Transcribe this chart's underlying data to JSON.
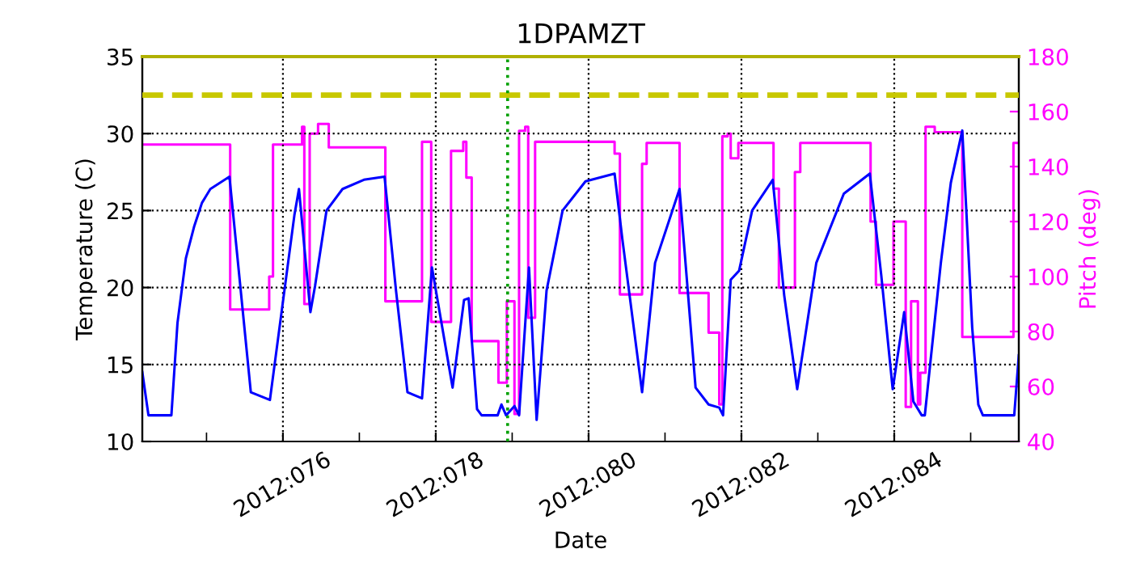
{
  "chart_data": {
    "type": "line",
    "title": "1DPAMZT",
    "xlabel": "Date",
    "ylabel": "Temperature (C)",
    "y2label": "Pitch (deg)",
    "xlim": [
      "2012-03-14T03:50",
      "2012-03-25T15:07"
    ],
    "xticks": [
      {
        "value": "2012-03-15",
        "label": null
      },
      {
        "value": "2012-03-16",
        "label": "2012:076"
      },
      {
        "value": "2012-03-17",
        "label": null
      },
      {
        "value": "2012-03-18",
        "label": "2012:078"
      },
      {
        "value": "2012-03-19",
        "label": null
      },
      {
        "value": "2012-03-20",
        "label": "2012:080"
      },
      {
        "value": "2012-03-21",
        "label": null
      },
      {
        "value": "2012-03-22",
        "label": "2012:082"
      },
      {
        "value": "2012-03-23",
        "label": null
      },
      {
        "value": "2012-03-24",
        "label": "2012:084"
      },
      {
        "value": "2012-03-25",
        "label": null
      }
    ],
    "ylim": [
      10,
      35
    ],
    "yticks": [
      10,
      15,
      20,
      25,
      30,
      35
    ],
    "y2lim": [
      40,
      180
    ],
    "y2ticks": [
      40,
      60,
      80,
      100,
      120,
      140,
      160,
      180
    ],
    "grid": true,
    "ref_lines": [
      {
        "axis": "y",
        "value": 32.5,
        "color": "#c8c800",
        "line_style": "dashed"
      },
      {
        "axis": "y",
        "value": 35,
        "color": "#b0b000",
        "line_style": "solid"
      },
      {
        "axis": "x",
        "value": "2012-03-18T22:34",
        "color": "#00a000",
        "line_style": "dotted"
      }
    ],
    "series": [
      {
        "color": "#0000ff",
        "x": [
          "2012-03-14T03:50",
          "2012-03-14T05:46",
          "2012-03-14T12:58",
          "2012-03-14T14:53",
          "2012-03-14T17:31",
          "2012-03-14T20:10",
          "2012-03-14T22:34",
          "2012-03-15T01:12",
          "2012-03-15T07:12",
          "2012-03-15T13:55",
          "2012-03-15T19:55",
          "2012-03-16T03:36",
          "2012-03-16T05:02",
          "2012-03-16T08:38",
          "2012-03-16T10:05",
          "2012-03-16T13:41",
          "2012-03-16T18:43",
          "2012-03-17T01:26",
          "2012-03-17T07:55",
          "2012-03-17T11:31",
          "2012-03-17T15:07",
          "2012-03-17T19:41",
          "2012-03-17T22:48",
          "2012-03-18T05:17",
          "2012-03-18T08:53",
          "2012-03-18T10:19",
          "2012-03-18T12:58",
          "2012-03-18T14:24",
          "2012-03-18T19:26",
          "2012-03-18T20:38",
          "2012-03-18T22:05",
          "2012-03-19T00:43",
          "2012-03-19T02:10",
          "2012-03-19T05:17",
          "2012-03-19T07:41",
          "2012-03-19T10:48",
          "2012-03-19T15:50",
          "2012-03-19T23:02",
          "2012-03-20T08:10",
          "2012-03-20T10:34",
          "2012-03-20T16:48",
          "2012-03-20T20:53",
          "2012-03-21T04:34",
          "2012-03-21T09:36",
          "2012-03-21T13:41",
          "2012-03-21T17:02",
          "2012-03-21T18:14",
          "2012-03-21T20:38",
          "2012-03-21T23:17",
          "2012-03-22T03:22",
          "2012-03-22T09:50",
          "2012-03-22T13:26",
          "2012-03-22T17:31",
          "2012-03-22T23:31",
          "2012-03-23T08:10",
          "2012-03-23T16:19",
          "2012-03-23T19:55",
          "2012-03-23T23:31",
          "2012-03-24T03:07",
          "2012-03-24T06:00",
          "2012-03-24T08:38",
          "2012-03-24T09:36",
          "2012-03-24T14:38",
          "2012-03-24T17:46",
          "2012-03-24T21:22",
          "2012-03-25T00:29",
          "2012-03-25T02:24",
          "2012-03-25T03:50",
          "2012-03-25T13:41",
          "2012-03-25T15:07"
        ],
        "values": [
          14.5,
          11.7,
          11.7,
          17.7,
          21.9,
          24.0,
          25.5,
          26.4,
          27.2,
          13.2,
          12.7,
          24.7,
          26.4,
          18.4,
          20.1,
          25.0,
          26.4,
          27.0,
          27.2,
          19.8,
          13.2,
          12.8,
          21.3,
          13.5,
          19.2,
          19.3,
          12.1,
          11.7,
          11.7,
          12.4,
          11.7,
          12.3,
          11.7,
          21.3,
          11.4,
          19.8,
          25.0,
          26.9,
          27.4,
          23.2,
          13.2,
          21.6,
          26.4,
          13.5,
          12.4,
          12.2,
          11.7,
          20.5,
          21.1,
          25.0,
          27.0,
          19.5,
          13.4,
          21.6,
          26.1,
          27.4,
          20.8,
          13.4,
          18.4,
          12.6,
          11.7,
          11.7,
          21.6,
          26.8,
          30.2,
          17.4,
          12.4,
          11.7,
          11.7,
          15.6
        ]
      },
      {
        "type": "step",
        "axis": "y2",
        "color": "#ff00ff",
        "x": [
          "2012-03-14T03:50",
          "2012-03-15T07:26",
          "2012-03-15T19:41",
          "2012-03-15T20:53",
          "2012-03-16T06:00",
          "2012-03-16T06:43",
          "2012-03-16T08:24",
          "2012-03-16T11:02",
          "2012-03-16T14:24",
          "2012-03-17T08:10",
          "2012-03-17T19:41",
          "2012-03-17T22:34",
          "2012-03-18T04:48",
          "2012-03-18T08:38",
          "2012-03-18T09:36",
          "2012-03-18T11:17",
          "2012-03-18T19:41",
          "2012-03-18T22:19",
          "2012-03-19T00:43",
          "2012-03-19T02:10",
          "2012-03-19T04:05",
          "2012-03-19T05:02",
          "2012-03-19T07:12",
          "2012-03-20T08:10",
          "2012-03-20T09:50",
          "2012-03-20T16:48",
          "2012-03-20T18:14",
          "2012-03-21T04:34",
          "2012-03-21T13:41",
          "2012-03-21T17:02",
          "2012-03-21T18:00",
          "2012-03-21T19:41",
          "2012-03-21T20:38",
          "2012-03-21T23:02",
          "2012-03-22T10:05",
          "2012-03-22T11:46",
          "2012-03-22T16:48",
          "2012-03-22T18:29",
          "2012-03-23T16:34",
          "2012-03-23T18:14",
          "2012-03-23T23:46",
          "2012-03-24T03:36",
          "2012-03-24T05:17",
          "2012-03-24T07:26",
          "2012-03-24T08:10",
          "2012-03-24T09:50",
          "2012-03-24T12:43",
          "2012-03-24T21:22",
          "2012-03-25T13:26",
          "2012-03-25T15:07"
        ],
        "values": [
          148,
          88,
          100,
          148,
          154.5,
          90,
          152,
          155.5,
          147,
          91,
          149,
          83.5,
          145.7,
          149,
          136,
          76.5,
          61.4,
          91,
          50,
          153,
          154.5,
          85,
          149,
          144.7,
          93.5,
          141,
          148.6,
          94,
          79.6,
          53.5,
          151,
          152,
          143,
          148.6,
          132,
          96,
          138,
          148.6,
          120,
          97,
          120,
          52.6,
          91,
          53.5,
          65,
          154.5,
          152.5,
          78,
          148.6,
          148.6
        ]
      }
    ]
  }
}
